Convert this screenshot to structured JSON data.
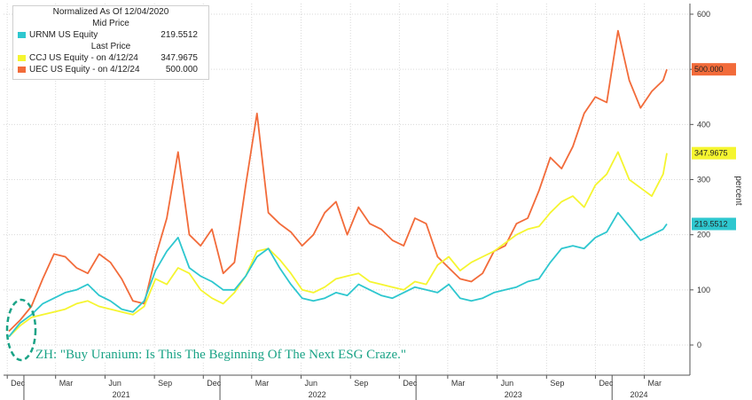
{
  "chart_data": {
    "type": "line",
    "ylabel": "percent",
    "ylim": [
      -50,
      620
    ],
    "y_ticks": [
      0,
      100,
      200,
      300,
      400,
      500,
      600
    ],
    "grid": true,
    "x_months": [
      "Dec",
      "Mar",
      "Jun",
      "Sep",
      "Dec",
      "Mar",
      "Jun",
      "Sep",
      "Dec",
      "Mar",
      "Jun",
      "Sep",
      "Dec",
      "Mar"
    ],
    "x_years": [
      "2021",
      "2022",
      "2023",
      "2024"
    ],
    "x": [
      "2020-12-04",
      "2020-12-25",
      "2021-01-15",
      "2021-02-05",
      "2021-02-26",
      "2021-03-19",
      "2021-04-09",
      "2021-04-30",
      "2021-05-21",
      "2021-06-11",
      "2021-07-02",
      "2021-07-23",
      "2021-08-13",
      "2021-09-03",
      "2021-09-24",
      "2021-10-15",
      "2021-11-05",
      "2021-11-26",
      "2021-12-17",
      "2022-01-07",
      "2022-01-28",
      "2022-02-18",
      "2022-03-11",
      "2022-04-01",
      "2022-04-22",
      "2022-05-13",
      "2022-06-03",
      "2022-06-24",
      "2022-07-15",
      "2022-08-05",
      "2022-08-26",
      "2022-09-16",
      "2022-10-07",
      "2022-10-28",
      "2022-11-18",
      "2022-12-09",
      "2022-12-30",
      "2023-01-20",
      "2023-02-10",
      "2023-03-03",
      "2023-03-24",
      "2023-04-14",
      "2023-05-05",
      "2023-05-26",
      "2023-06-16",
      "2023-07-07",
      "2023-07-28",
      "2023-08-18",
      "2023-09-08",
      "2023-09-29",
      "2023-10-20",
      "2023-11-10",
      "2023-12-01",
      "2023-12-22",
      "2024-01-12",
      "2024-02-02",
      "2024-02-23",
      "2024-03-15",
      "2024-04-05",
      "2024-04-12"
    ],
    "series": [
      {
        "name": "URNM US Equity",
        "color": "#2ec7cf",
        "values": [
          15,
          40,
          55,
          75,
          85,
          95,
          100,
          110,
          90,
          80,
          65,
          60,
          80,
          135,
          170,
          195,
          140,
          125,
          115,
          100,
          100,
          125,
          160,
          175,
          140,
          110,
          85,
          80,
          85,
          95,
          90,
          110,
          100,
          90,
          85,
          95,
          105,
          100,
          95,
          110,
          85,
          80,
          85,
          95,
          100,
          105,
          115,
          120,
          150,
          175,
          180,
          175,
          195,
          205,
          240,
          215,
          190,
          200,
          210,
          219.5512
        ]
      },
      {
        "name": "CCJ US Equity",
        "color": "#f5f530",
        "values": [
          15,
          35,
          50,
          55,
          60,
          65,
          75,
          80,
          70,
          65,
          60,
          55,
          70,
          120,
          110,
          140,
          130,
          100,
          85,
          75,
          95,
          125,
          170,
          175,
          155,
          130,
          100,
          95,
          105,
          120,
          125,
          130,
          115,
          110,
          105,
          100,
          115,
          110,
          145,
          160,
          135,
          150,
          160,
          170,
          185,
          200,
          210,
          215,
          240,
          260,
          270,
          250,
          290,
          310,
          350,
          300,
          285,
          270,
          310,
          347.9675
        ]
      },
      {
        "name": "UEC US Equity",
        "color": "#f26b3a",
        "values": [
          25,
          45,
          70,
          120,
          165,
          160,
          140,
          130,
          165,
          150,
          120,
          80,
          75,
          160,
          230,
          350,
          200,
          180,
          210,
          130,
          150,
          290,
          420,
          240,
          220,
          205,
          180,
          200,
          240,
          260,
          200,
          250,
          220,
          210,
          190,
          180,
          230,
          220,
          160,
          140,
          120,
          115,
          130,
          170,
          180,
          220,
          230,
          280,
          340,
          320,
          360,
          420,
          450,
          440,
          570,
          480,
          430,
          460,
          480,
          500
        ]
      }
    ],
    "legend": {
      "normalized_title": "Normalized As Of 12/04/2020",
      "mid_price_header": "Mid Price",
      "last_price_header": "Last Price",
      "rows": [
        {
          "label": "URNM US Equity",
          "value": "219.5512",
          "color": "#2ec7cf"
        },
        {
          "label": "CCJ US Equity  -   on 4/12/24",
          "value": "347.9675",
          "color": "#f5f530"
        },
        {
          "label": "UEC US Equity  -   on 4/12/24",
          "value": "500.000",
          "color": "#f26b3a"
        }
      ]
    },
    "last_value_tags": [
      {
        "text": "500.000",
        "value": 500,
        "color": "#f26b3a"
      },
      {
        "text": "347.9675",
        "value": 347.9675,
        "color": "#f5f530"
      },
      {
        "text": "219.5512",
        "value": 219.5512,
        "color": "#2ec7cf"
      }
    ],
    "annotation": "ZH: \"Buy Uranium: Is This The Beginning Of The Next ESG Craze.\"",
    "annotation_color": "#1aa386"
  }
}
